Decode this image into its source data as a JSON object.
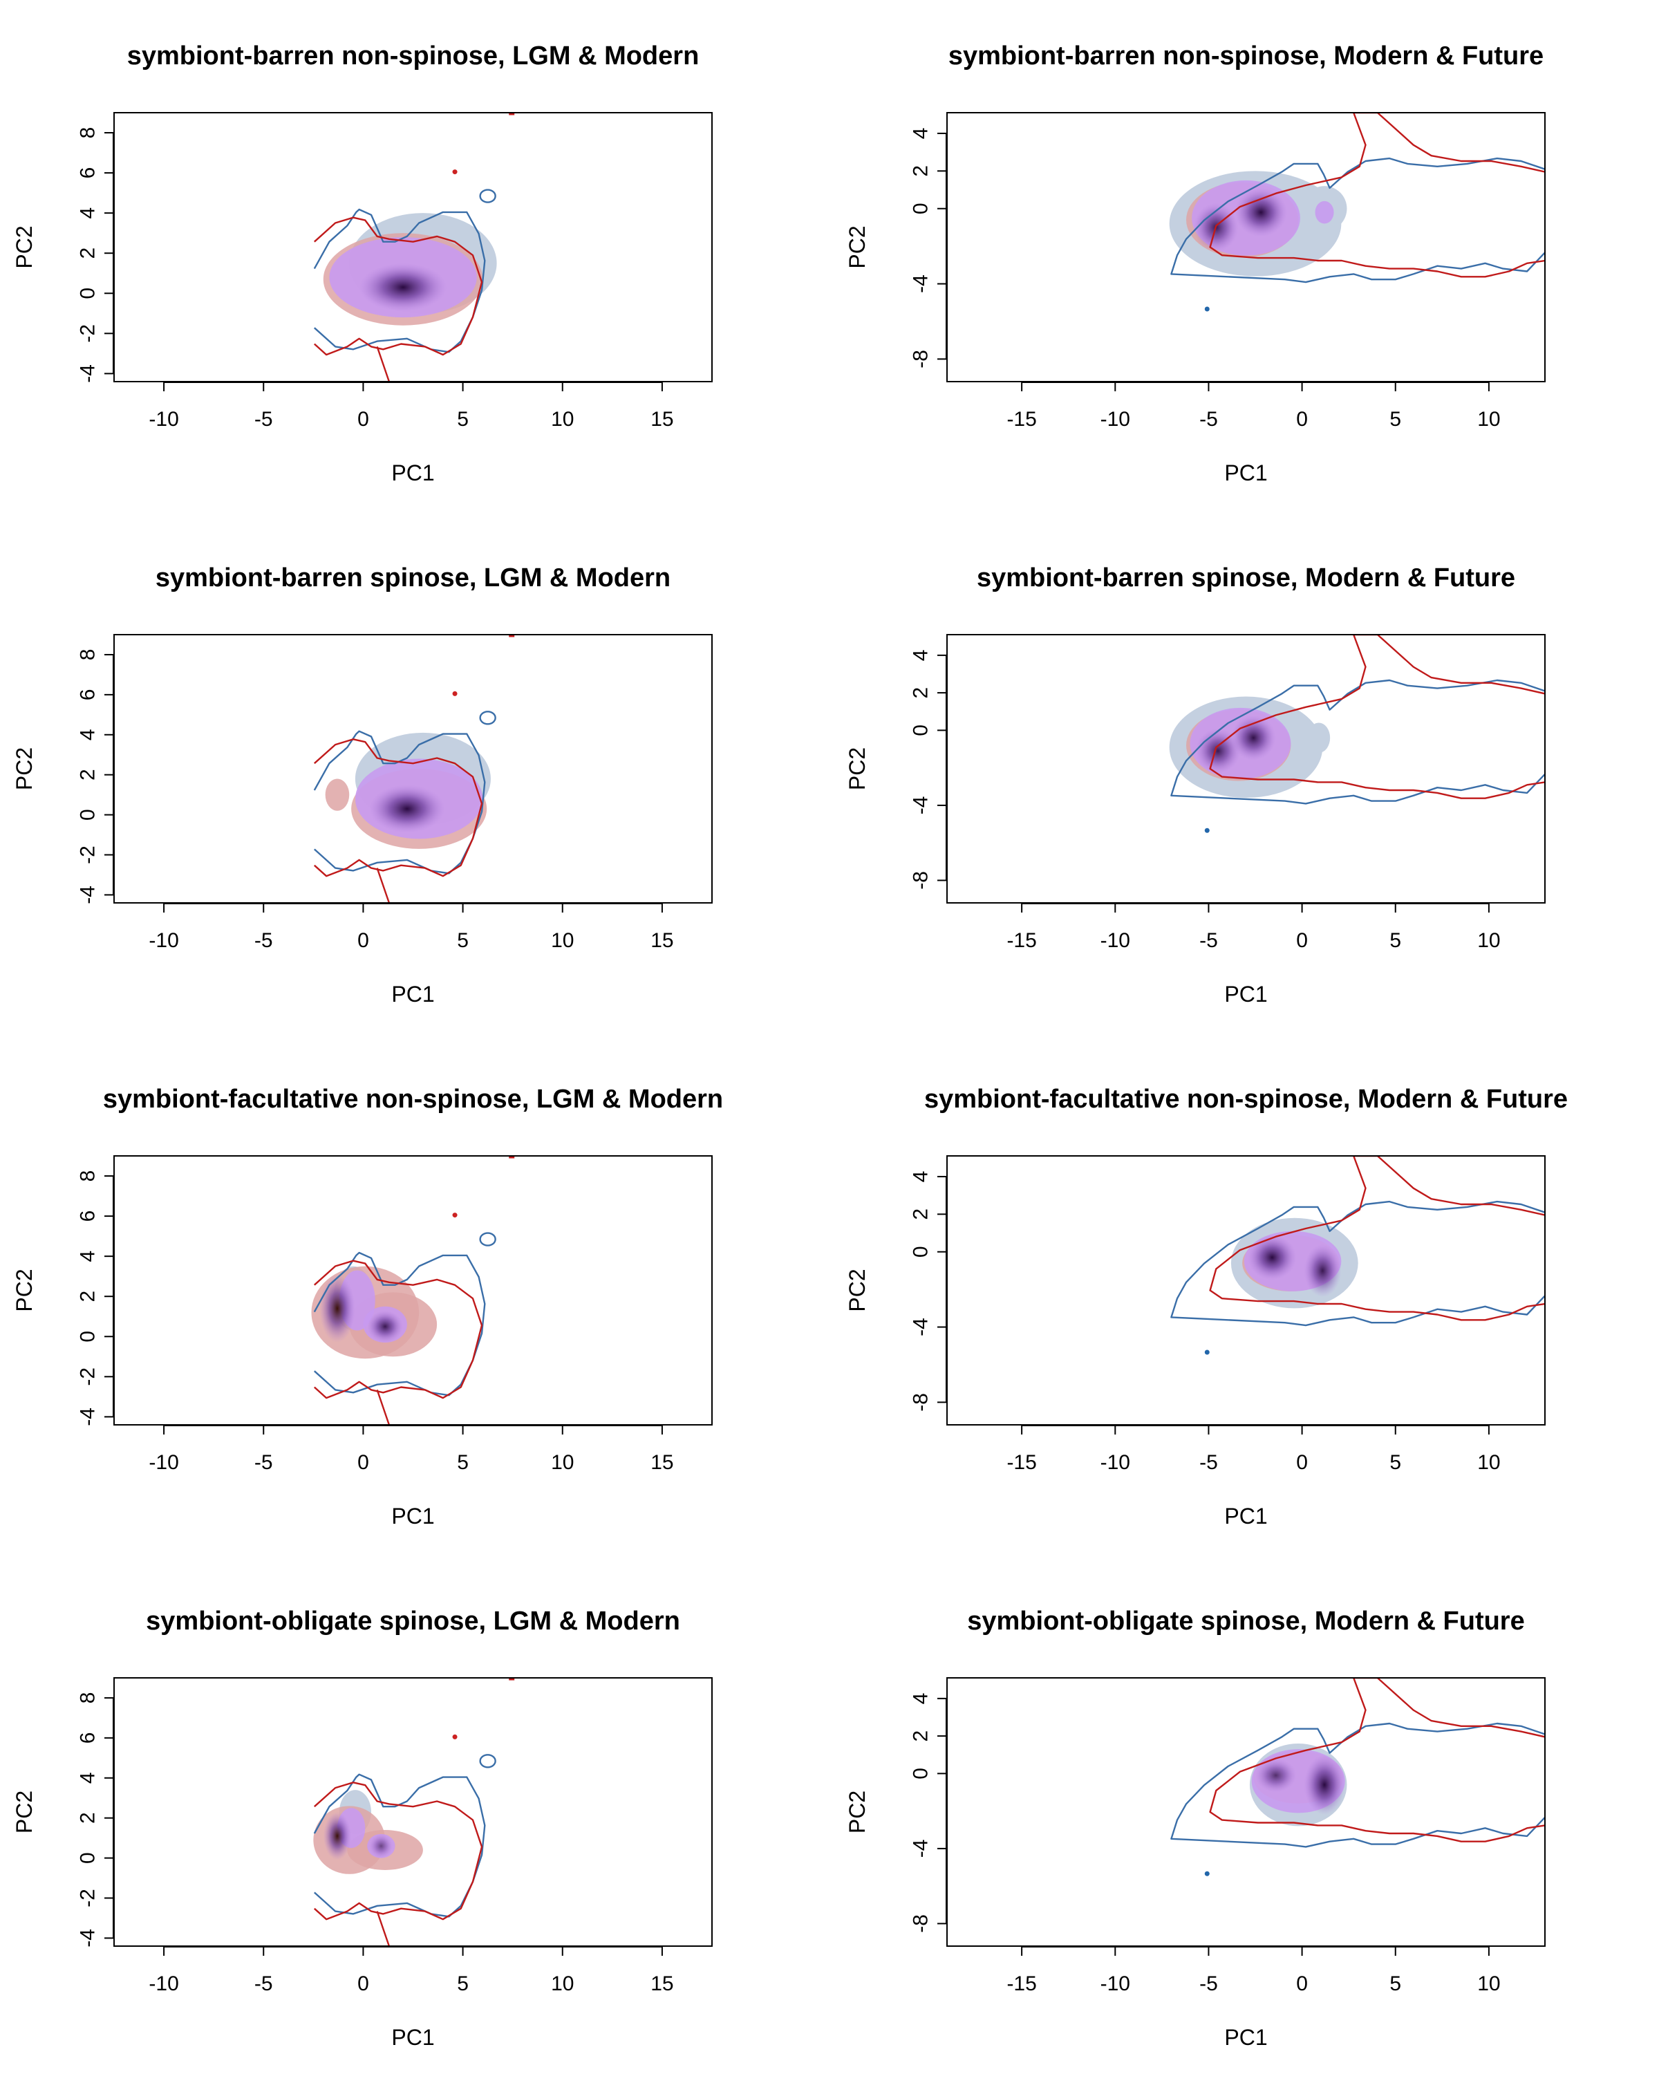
{
  "chart_data": [
    {
      "type": "niche-density",
      "title": "symbiont-barren non-spinose, LGM & Modern",
      "xlabel": "PC1",
      "ylabel": "PC2",
      "xlim": [
        -12.5,
        17.5
      ],
      "ylim": [
        -4.4,
        9.0
      ],
      "xticks": [
        -10,
        -5,
        0,
        5,
        10,
        15
      ],
      "yticks": [
        -4,
        -2,
        0,
        2,
        4,
        6,
        8
      ],
      "fill_a": {
        "color": "#dea4a4",
        "blobs": [
          {
            "x": 2.0,
            "y": 0.7,
            "rx": 4.0,
            "ry": 2.3
          }
        ]
      },
      "fill_b": {
        "color": "#c4d0e0",
        "blobs": [
          {
            "x": 3.0,
            "y": 1.5,
            "rx": 3.7,
            "ry": 2.5
          }
        ]
      },
      "overlap": {
        "color": "#c89af0",
        "blobs": [
          {
            "x": 2.0,
            "y": 0.8,
            "rx": 3.7,
            "ry": 2.0
          }
        ]
      },
      "peaks": [
        {
          "x": 2.0,
          "y": 0.3,
          "rx": 2.2,
          "ry": 1.2,
          "w": 1.0
        }
      ]
    },
    {
      "type": "niche-density",
      "title": "symbiont-barren non-spinose, Modern & Future",
      "xlabel": "PC1",
      "ylabel": "PC2",
      "xlim": [
        -19.0,
        13.0
      ],
      "ylim": [
        -9.2,
        5.1
      ],
      "xticks": [
        -15,
        -10,
        -5,
        0,
        5,
        10
      ],
      "yticks": [
        -8,
        -4,
        0,
        2,
        4
      ],
      "fill_a": {
        "color": "#dea4a4",
        "blobs": [
          {
            "x": -3.2,
            "y": -0.6,
            "rx": 3.0,
            "ry": 2.0
          }
        ]
      },
      "fill_b": {
        "color": "#c4d0e0",
        "blobs": [
          {
            "x": -2.5,
            "y": -0.8,
            "rx": 4.6,
            "ry": 2.8
          },
          {
            "x": 1.2,
            "y": 0.0,
            "rx": 1.2,
            "ry": 1.2
          }
        ]
      },
      "overlap": {
        "color": "#c89af0",
        "blobs": [
          {
            "x": -3.0,
            "y": -0.5,
            "rx": 2.9,
            "ry": 2.0
          },
          {
            "x": 1.2,
            "y": -0.2,
            "rx": 0.5,
            "ry": 0.6
          }
        ]
      },
      "peaks": [
        {
          "x": -4.6,
          "y": -1.0,
          "rx": 1.2,
          "ry": 1.3,
          "w": 0.9
        },
        {
          "x": -2.2,
          "y": -0.2,
          "rx": 1.4,
          "ry": 1.3,
          "w": 1.0
        }
      ]
    },
    {
      "type": "niche-density",
      "title": "symbiont-barren spinose, LGM & Modern",
      "xlabel": "PC1",
      "ylabel": "PC2",
      "xlim": [
        -12.5,
        17.5
      ],
      "ylim": [
        -4.4,
        9.0
      ],
      "xticks": [
        -10,
        -5,
        0,
        5,
        10,
        15
      ],
      "yticks": [
        -4,
        -2,
        0,
        2,
        4,
        6,
        8
      ],
      "fill_a": {
        "color": "#dea4a4",
        "blobs": [
          {
            "x": 2.8,
            "y": 0.3,
            "rx": 3.4,
            "ry": 2.0
          },
          {
            "x": -1.3,
            "y": 1.0,
            "rx": 0.6,
            "ry": 0.8
          }
        ]
      },
      "fill_b": {
        "color": "#c4d0e0",
        "blobs": [
          {
            "x": 3.0,
            "y": 1.8,
            "rx": 3.4,
            "ry": 2.3
          }
        ]
      },
      "overlap": {
        "color": "#c89af0",
        "blobs": [
          {
            "x": 2.8,
            "y": 0.8,
            "rx": 3.2,
            "ry": 2.0
          }
        ]
      },
      "peaks": [
        {
          "x": 2.2,
          "y": 0.3,
          "rx": 1.9,
          "ry": 1.2,
          "w": 1.0
        }
      ]
    },
    {
      "type": "niche-density",
      "title": "symbiont-barren spinose, Modern & Future",
      "xlabel": "PC1",
      "ylabel": "PC2",
      "xlim": [
        -19.0,
        13.0
      ],
      "ylim": [
        -9.2,
        5.1
      ],
      "xticks": [
        -15,
        -10,
        -5,
        0,
        5,
        10
      ],
      "yticks": [
        -8,
        -4,
        0,
        2,
        4
      ],
      "fill_a": {
        "color": "#dea4a4",
        "blobs": [
          {
            "x": -3.4,
            "y": -0.8,
            "rx": 2.8,
            "ry": 1.9
          }
        ]
      },
      "fill_b": {
        "color": "#c4d0e0",
        "blobs": [
          {
            "x": -3.0,
            "y": -0.9,
            "rx": 4.1,
            "ry": 2.7
          },
          {
            "x": 0.9,
            "y": -0.4,
            "rx": 0.6,
            "ry": 0.8
          }
        ]
      },
      "overlap": {
        "color": "#c89af0",
        "blobs": [
          {
            "x": -3.3,
            "y": -0.7,
            "rx": 2.7,
            "ry": 1.9
          }
        ]
      },
      "peaks": [
        {
          "x": -4.5,
          "y": -1.1,
          "rx": 1.2,
          "ry": 1.2,
          "w": 0.9
        },
        {
          "x": -2.6,
          "y": -0.4,
          "rx": 1.2,
          "ry": 1.2,
          "w": 0.95
        }
      ]
    },
    {
      "type": "niche-density",
      "title": "symbiont-facultative non-spinose, LGM & Modern",
      "xlabel": "PC1",
      "ylabel": "PC2",
      "xlim": [
        -12.5,
        17.5
      ],
      "ylim": [
        -4.4,
        9.0
      ],
      "xticks": [
        -10,
        -5,
        0,
        5,
        10,
        15
      ],
      "yticks": [
        -4,
        -2,
        0,
        2,
        4,
        6,
        8
      ],
      "fill_a": {
        "color": "#dea4a4",
        "blobs": [
          {
            "x": 0.1,
            "y": 1.2,
            "rx": 2.7,
            "ry": 2.3
          },
          {
            "x": 1.5,
            "y": 0.6,
            "rx": 2.2,
            "ry": 1.6
          }
        ]
      },
      "fill_b": {
        "color": "#c4d0e0",
        "blobs": [
          {
            "x": -0.5,
            "y": 1.9,
            "rx": 1.0,
            "ry": 1.6
          }
        ]
      },
      "overlap": {
        "color": "#c89af0",
        "blobs": [
          {
            "x": -0.3,
            "y": 1.8,
            "rx": 0.9,
            "ry": 1.5
          },
          {
            "x": 1.1,
            "y": 0.6,
            "rx": 1.1,
            "ry": 0.9
          }
        ]
      },
      "peaks": [
        {
          "x": -1.3,
          "y": 1.4,
          "rx": 0.9,
          "ry": 1.7,
          "w": 1.0,
          "c": "#3a1208"
        },
        {
          "x": 1.1,
          "y": 0.5,
          "rx": 0.9,
          "ry": 0.8,
          "w": 0.9
        }
      ]
    },
    {
      "type": "niche-density",
      "title": "symbiont-facultative non-spinose, Modern & Future",
      "xlabel": "PC1",
      "ylabel": "PC2",
      "xlim": [
        -19.0,
        13.0
      ],
      "ylim": [
        -9.2,
        5.1
      ],
      "xticks": [
        -15,
        -10,
        -5,
        0,
        5,
        10
      ],
      "yticks": [
        -8,
        -4,
        0,
        2,
        4
      ],
      "fill_a": {
        "color": "#dea4a4",
        "blobs": [
          {
            "x": -0.6,
            "y": -0.6,
            "rx": 2.6,
            "ry": 1.5
          }
        ]
      },
      "fill_b": {
        "color": "#c4d0e0",
        "blobs": [
          {
            "x": -0.4,
            "y": -0.6,
            "rx": 3.4,
            "ry": 2.4
          }
        ]
      },
      "overlap": {
        "color": "#c89af0",
        "blobs": [
          {
            "x": -0.5,
            "y": -0.5,
            "rx": 2.6,
            "ry": 1.6
          }
        ]
      },
      "peaks": [
        {
          "x": -1.6,
          "y": -0.3,
          "rx": 1.3,
          "ry": 1.2,
          "w": 1.0
        },
        {
          "x": 1.1,
          "y": -1.0,
          "rx": 1.0,
          "ry": 1.4,
          "w": 0.9
        }
      ]
    },
    {
      "type": "niche-density",
      "title": "symbiont-obligate spinose, LGM & Modern",
      "xlabel": "PC1",
      "ylabel": "PC2",
      "xlim": [
        -12.5,
        17.5
      ],
      "ylim": [
        -4.4,
        9.0
      ],
      "xticks": [
        -10,
        -5,
        0,
        5,
        10,
        15
      ],
      "yticks": [
        -4,
        -2,
        0,
        2,
        4,
        6,
        8
      ],
      "fill_a": {
        "color": "#dea4a4",
        "blobs": [
          {
            "x": -0.7,
            "y": 0.9,
            "rx": 1.8,
            "ry": 1.7
          },
          {
            "x": 1.1,
            "y": 0.4,
            "rx": 1.9,
            "ry": 1.0
          }
        ]
      },
      "fill_b": {
        "color": "#c4d0e0",
        "blobs": [
          {
            "x": -0.4,
            "y": 2.3,
            "rx": 0.8,
            "ry": 1.1
          }
        ]
      },
      "overlap": {
        "color": "#c89af0",
        "blobs": [
          {
            "x": -0.6,
            "y": 1.5,
            "rx": 0.7,
            "ry": 1.0
          },
          {
            "x": 0.9,
            "y": 0.6,
            "rx": 0.7,
            "ry": 0.6
          }
        ]
      },
      "peaks": [
        {
          "x": -1.3,
          "y": 1.1,
          "rx": 0.7,
          "ry": 1.2,
          "w": 1.0,
          "c": "#3a1208"
        },
        {
          "x": 0.9,
          "y": 0.6,
          "rx": 0.6,
          "ry": 0.6,
          "w": 0.6
        }
      ]
    },
    {
      "type": "niche-density",
      "title": "symbiont-obligate spinose, Modern & Future",
      "xlabel": "PC1",
      "ylabel": "PC2",
      "xlim": [
        -19.0,
        13.0
      ],
      "ylim": [
        -9.2,
        5.1
      ],
      "xticks": [
        -15,
        -10,
        -5,
        0,
        5,
        10
      ],
      "yticks": [
        -8,
        -4,
        0,
        2,
        4
      ],
      "fill_a": {
        "color": "#dea4a4",
        "blobs": [
          {
            "x": -0.2,
            "y": -0.2,
            "rx": 2.4,
            "ry": 1.4
          }
        ]
      },
      "fill_b": {
        "color": "#c4d0e0",
        "blobs": [
          {
            "x": -0.2,
            "y": -0.6,
            "rx": 2.6,
            "ry": 2.2
          }
        ]
      },
      "overlap": {
        "color": "#c89af0",
        "blobs": [
          {
            "x": -0.2,
            "y": -0.4,
            "rx": 2.5,
            "ry": 1.7
          }
        ]
      },
      "peaks": [
        {
          "x": -1.4,
          "y": -0.1,
          "rx": 1.1,
          "ry": 0.9,
          "w": 0.75
        },
        {
          "x": 1.2,
          "y": -0.6,
          "rx": 1.1,
          "ry": 1.6,
          "w": 1.0
        }
      ]
    }
  ]
}
